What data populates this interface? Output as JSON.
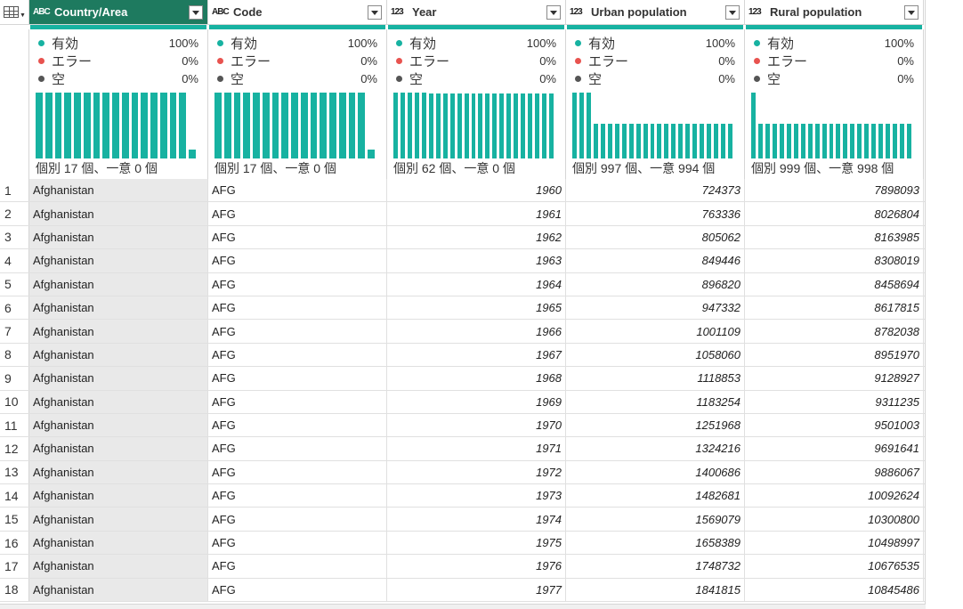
{
  "colors": {
    "teal": "#17b2a1",
    "red": "#e8534f",
    "gray": "#555555",
    "active_header": "#1e7a5f"
  },
  "corner": {
    "icon": "table-menu-icon"
  },
  "columns": [
    {
      "name": "Country/Area",
      "type_icon": "ABC",
      "valid_label": "有効",
      "valid_pct": "100%",
      "error_label": "エラー",
      "error_pct": "0%",
      "empty_label": "空",
      "empty_pct": "0%",
      "distinct_text": "個別 17 個、一意 0 個",
      "dist": [
        1,
        1,
        1,
        1,
        1,
        1,
        1,
        1,
        1,
        1,
        1,
        1,
        1,
        1,
        1,
        1,
        0.14
      ]
    },
    {
      "name": "Code",
      "type_icon": "ABC",
      "valid_label": "有効",
      "valid_pct": "100%",
      "error_label": "エラー",
      "error_pct": "0%",
      "empty_label": "空",
      "empty_pct": "0%",
      "distinct_text": "個別 17 個、一意 0 個",
      "dist": [
        1,
        1,
        1,
        1,
        1,
        1,
        1,
        1,
        1,
        1,
        1,
        1,
        1,
        1,
        1,
        1,
        0.14
      ]
    },
    {
      "name": "Year",
      "type_icon": "123",
      "valid_label": "有効",
      "valid_pct": "100%",
      "error_label": "エラー",
      "error_pct": "0%",
      "empty_label": "空",
      "empty_pct": "0%",
      "distinct_text": "個別 62 個、一意 0 個",
      "dist": [
        1,
        1,
        1,
        1,
        1,
        0.98,
        0.98,
        0.98,
        0.98,
        0.98,
        0.98,
        0.98,
        0.98,
        0.98,
        0.98,
        0.98,
        0.98,
        0.98,
        0.98,
        0.98,
        0.98,
        0.98,
        0.98
      ]
    },
    {
      "name": "Urban population",
      "type_icon": "123",
      "valid_label": "有効",
      "valid_pct": "100%",
      "error_label": "エラー",
      "error_pct": "0%",
      "empty_label": "空",
      "empty_pct": "0%",
      "distinct_text": "個別 997 個、一意 994 個",
      "dist": [
        1,
        1,
        1,
        0.53,
        0.53,
        0.53,
        0.53,
        0.53,
        0.53,
        0.53,
        0.53,
        0.53,
        0.53,
        0.53,
        0.53,
        0.53,
        0.53,
        0.53,
        0.53,
        0.53,
        0.53,
        0.53,
        0.53
      ]
    },
    {
      "name": "Rural population",
      "type_icon": "123",
      "valid_label": "有効",
      "valid_pct": "100%",
      "error_label": "エラー",
      "error_pct": "0%",
      "empty_label": "空",
      "empty_pct": "0%",
      "distinct_text": "個別 999 個、一意 998 個",
      "dist": [
        1,
        0.53,
        0.53,
        0.53,
        0.53,
        0.53,
        0.53,
        0.53,
        0.53,
        0.53,
        0.53,
        0.53,
        0.53,
        0.53,
        0.53,
        0.53,
        0.53,
        0.53,
        0.53,
        0.53,
        0.53,
        0.53,
        0.53
      ]
    }
  ],
  "rows": [
    [
      "1",
      "Afghanistan",
      "AFG",
      "1960",
      "724373",
      "7898093"
    ],
    [
      "2",
      "Afghanistan",
      "AFG",
      "1961",
      "763336",
      "8026804"
    ],
    [
      "3",
      "Afghanistan",
      "AFG",
      "1962",
      "805062",
      "8163985"
    ],
    [
      "4",
      "Afghanistan",
      "AFG",
      "1963",
      "849446",
      "8308019"
    ],
    [
      "5",
      "Afghanistan",
      "AFG",
      "1964",
      "896820",
      "8458694"
    ],
    [
      "6",
      "Afghanistan",
      "AFG",
      "1965",
      "947332",
      "8617815"
    ],
    [
      "7",
      "Afghanistan",
      "AFG",
      "1966",
      "1001109",
      "8782038"
    ],
    [
      "8",
      "Afghanistan",
      "AFG",
      "1967",
      "1058060",
      "8951970"
    ],
    [
      "9",
      "Afghanistan",
      "AFG",
      "1968",
      "1118853",
      "9128927"
    ],
    [
      "10",
      "Afghanistan",
      "AFG",
      "1969",
      "1183254",
      "9311235"
    ],
    [
      "11",
      "Afghanistan",
      "AFG",
      "1970",
      "1251968",
      "9501003"
    ],
    [
      "12",
      "Afghanistan",
      "AFG",
      "1971",
      "1324216",
      "9691641"
    ],
    [
      "13",
      "Afghanistan",
      "AFG",
      "1972",
      "1400686",
      "9886067"
    ],
    [
      "14",
      "Afghanistan",
      "AFG",
      "1973",
      "1482681",
      "10092624"
    ],
    [
      "15",
      "Afghanistan",
      "AFG",
      "1974",
      "1569079",
      "10300800"
    ],
    [
      "16",
      "Afghanistan",
      "AFG",
      "1975",
      "1658389",
      "10498997"
    ],
    [
      "17",
      "Afghanistan",
      "AFG",
      "1976",
      "1748732",
      "10676535"
    ],
    [
      "18",
      "Afghanistan",
      "AFG",
      "1977",
      "1841815",
      "10845486"
    ]
  ]
}
